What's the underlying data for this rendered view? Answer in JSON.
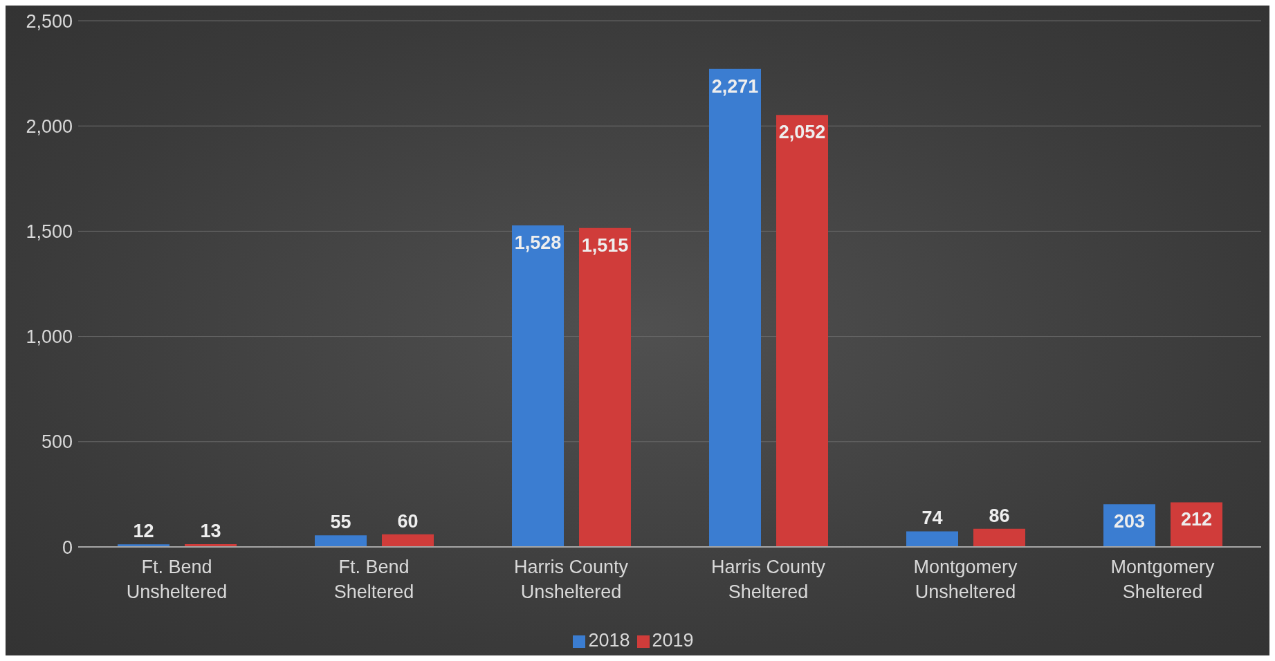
{
  "chart_data": {
    "type": "bar",
    "categories": [
      "Ft. Bend Unsheltered",
      "Ft. Bend Sheltered",
      "Harris County Unsheltered",
      "Harris County Sheltered",
      "Montgomery Unsheltered",
      "Montgomery Sheltered"
    ],
    "series": [
      {
        "name": "2018",
        "color": "#3b7dd1",
        "values": [
          12,
          55,
          1528,
          2271,
          74,
          203
        ],
        "value_labels": [
          "12",
          "55",
          "1,528",
          "2,271",
          "74",
          "203"
        ]
      },
      {
        "name": "2019",
        "color": "#d03c3a",
        "values": [
          13,
          60,
          1515,
          2052,
          86,
          212
        ],
        "value_labels": [
          "13",
          "60",
          "1,515",
          "2,052",
          "86",
          "212"
        ]
      }
    ],
    "ylim": [
      0,
      2500
    ],
    "yticks": [
      0,
      500,
      {
        "value": 1000,
        "label": "1,000"
      },
      {
        "value": 1500,
        "label": "1,500"
      },
      {
        "value": 2000,
        "label": "2,000"
      },
      {
        "value": 2500,
        "label": "2,500"
      }
    ],
    "grid": "y",
    "legend": "bottom"
  }
}
